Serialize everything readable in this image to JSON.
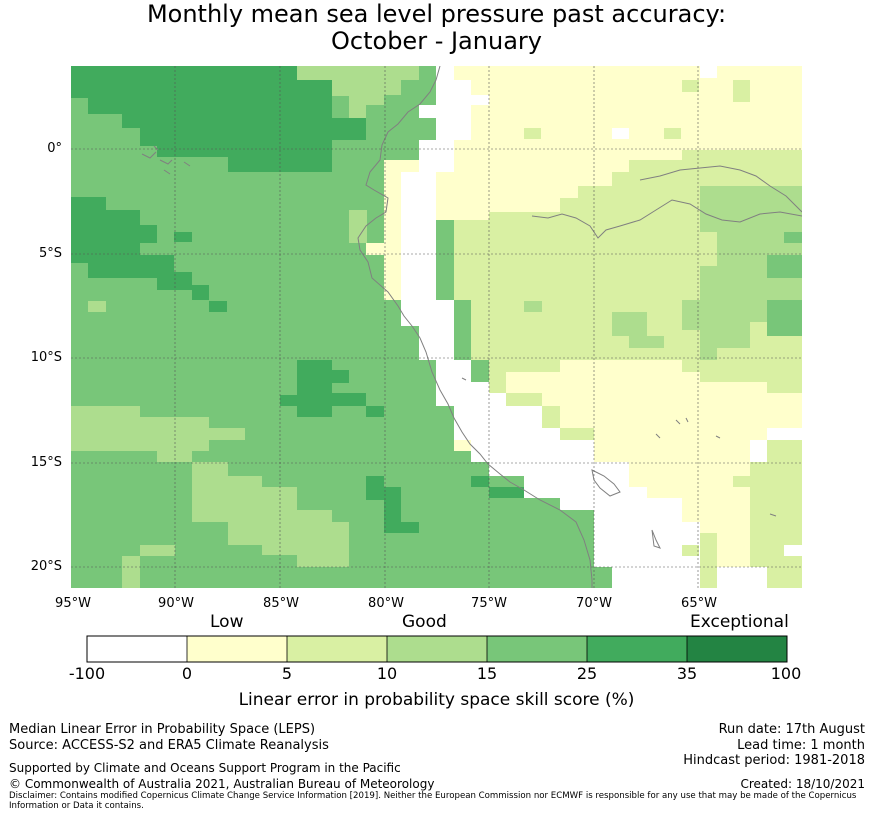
{
  "title": {
    "line1": "Monthly mean sea level pressure past accuracy:",
    "line2": "October - January"
  },
  "map": {
    "x_axis_labels": [
      "95°W",
      "90°W",
      "85°W",
      "80°W",
      "75°W",
      "70°W",
      "65°W"
    ],
    "y_axis_labels": [
      "0°",
      "5°S",
      "10°S",
      "15°S",
      "20°S"
    ],
    "lon_range": [
      -95,
      -60
    ],
    "lat_range": [
      -21,
      4
    ],
    "grid": true
  },
  "colorbar": {
    "category_labels": [
      "Low",
      "Good",
      "Exceptional"
    ],
    "tick_labels": [
      "-100",
      "0",
      "5",
      "10",
      "15",
      "25",
      "35",
      "100"
    ],
    "colors": [
      "#ffffff",
      "#ffffcc",
      "#d9f0a3",
      "#addd8e",
      "#78c679",
      "#41ab5d",
      "#238443"
    ],
    "title": "Linear error in probability space skill score (%)"
  },
  "footer": {
    "left1": "Median Linear Error in Probability Space (LEPS)",
    "left2": "Source: ACCESS-S2 and ERA5 Climate Reanalysis",
    "left3": "Supported by Climate and Oceans Support Program in the Pacific",
    "left4": "© Commonwealth of Australia 2021, Australian Bureau of Meteorology",
    "right1": "Run date: 17th August",
    "right2": "Lead time: 1 month",
    "right3": "Hindcast period: 1981-2018",
    "right4": "Created: 18/10/2021",
    "disclaimer": "Disclaimer: Contains modified Copernicus Climate Change Service Information [2019]. Neither the European Commission nor ECMWF is responsible for any use that may be made of the Copernicus Information or Data it contains."
  }
}
